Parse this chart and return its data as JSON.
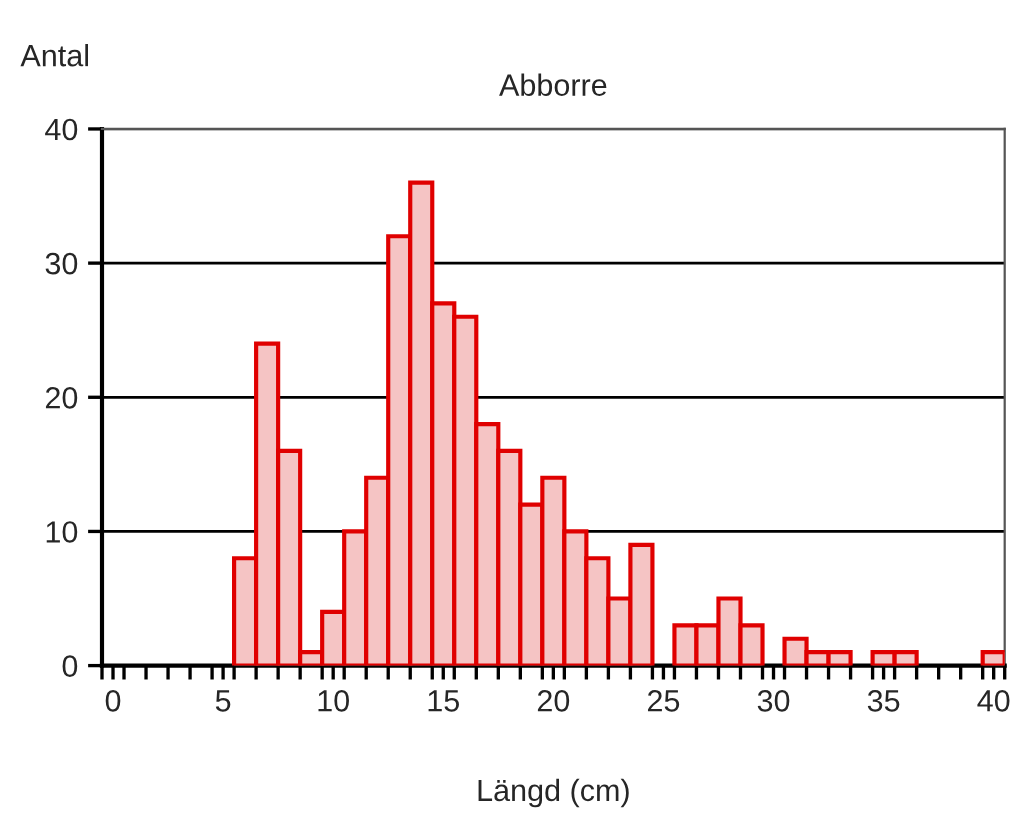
{
  "chart_data": {
    "type": "histogram",
    "title": "Abborre",
    "xlabel": "Längd (cm)",
    "ylabel": "Antal",
    "bins": [
      -0.5,
      0.5,
      1.5,
      2.5,
      3.5,
      4.5,
      5.5,
      6.5,
      7.5,
      8.5,
      9.5,
      10.5,
      11.5,
      12.5,
      13.5,
      14.5,
      15.5,
      16.5,
      17.5,
      18.5,
      19.5,
      20.5,
      21.5,
      22.5,
      23.5,
      24.5,
      25.5,
      26.5,
      27.5,
      28.5,
      29.5,
      30.5,
      31.5,
      32.5,
      33.5,
      34.5,
      35.5,
      36.5,
      37.5,
      38.5,
      39.5,
      40.5
    ],
    "values": [
      0,
      0,
      0,
      0,
      0,
      0,
      8,
      24,
      16,
      1,
      4,
      10,
      14,
      32,
      36,
      27,
      26,
      18,
      16,
      12,
      14,
      10,
      8,
      5,
      9,
      0,
      3,
      3,
      5,
      3,
      0,
      2,
      1,
      1,
      0,
      1,
      1,
      0,
      0,
      0,
      1
    ],
    "color": "#f5c4c4",
    "xlim": [
      -0.5,
      40.5
    ],
    "xticks": [
      0,
      5,
      10,
      15,
      20,
      25,
      30,
      35,
      40,
      {
        "value": -0.5,
        "label": null
      },
      {
        "value": 0.5,
        "label": null
      },
      {
        "value": 1.5,
        "label": null
      },
      {
        "value": 2.5,
        "label": null
      },
      {
        "value": 3.5,
        "label": null
      },
      {
        "value": 4.5,
        "label": null
      },
      {
        "value": 5.5,
        "label": null
      },
      {
        "value": 6.5,
        "label": null
      },
      {
        "value": 7.5,
        "label": null
      },
      {
        "value": 8.5,
        "label": null
      },
      {
        "value": 9.5,
        "label": null
      },
      {
        "value": 10.5,
        "label": null
      },
      {
        "value": 11.5,
        "label": null
      },
      {
        "value": 12.5,
        "label": null
      },
      {
        "value": 13.5,
        "label": null
      },
      {
        "value": 14.5,
        "label": null
      },
      {
        "value": 15.5,
        "label": null
      },
      {
        "value": 16.5,
        "label": null
      },
      {
        "value": 17.5,
        "label": null
      },
      {
        "value": 18.5,
        "label": null
      },
      {
        "value": 19.5,
        "label": null
      },
      {
        "value": 20.5,
        "label": null
      },
      {
        "value": 21.5,
        "label": null
      },
      {
        "value": 22.5,
        "label": null
      },
      {
        "value": 23.5,
        "label": null
      },
      {
        "value": 24.5,
        "label": null
      },
      {
        "value": 25.5,
        "label": null
      },
      {
        "value": 26.5,
        "label": null
      },
      {
        "value": 27.5,
        "label": null
      },
      {
        "value": 28.5,
        "label": null
      },
      {
        "value": 29.5,
        "label": null
      },
      {
        "value": 30.5,
        "label": null
      },
      {
        "value": 31.5,
        "label": null
      },
      {
        "value": 32.5,
        "label": null
      },
      {
        "value": 33.5,
        "label": null
      },
      {
        "value": 34.5,
        "label": null
      },
      {
        "value": 35.5,
        "label": null
      },
      {
        "value": 36.5,
        "label": null
      },
      {
        "value": 37.5,
        "label": null
      },
      {
        "value": 38.5,
        "label": null
      },
      {
        "value": 39.5,
        "label": null
      },
      {
        "value": 40.5,
        "label": null
      }
    ],
    "ylim": [
      0,
      40
    ],
    "yticks": [
      0,
      10,
      20,
      30,
      40
    ],
    "grid": "y",
    "legend": false
  }
}
